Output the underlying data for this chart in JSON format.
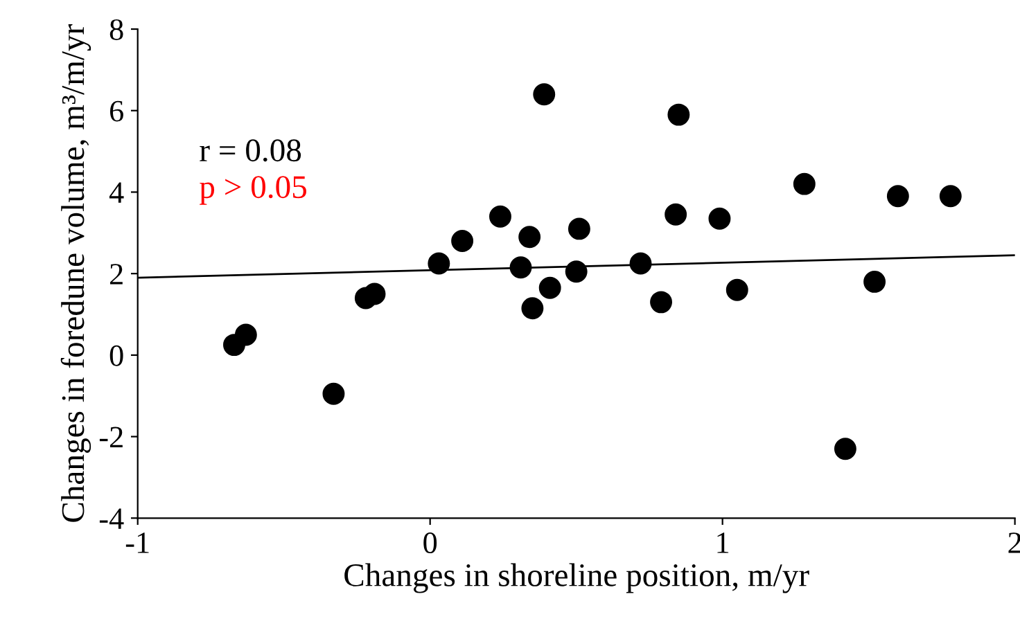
{
  "chart_data": {
    "type": "scatter",
    "xlabel": "Changes in shoreline position, m/yr",
    "ylabel": "Changes in foredune volume, m³/m/yr",
    "annotations": [
      "r = 0.08",
      "p > 0.05"
    ],
    "series": [
      {
        "color": "#000000",
        "marker": "circle",
        "x": [
          -0.67,
          -0.63,
          -0.33,
          -0.22,
          -0.19,
          0.03,
          0.11,
          0.24,
          0.31,
          0.34,
          0.35,
          0.39,
          0.41,
          0.5,
          0.51,
          0.72,
          0.79,
          0.84,
          0.85,
          0.99,
          1.05,
          1.28,
          1.42,
          1.52,
          1.6,
          1.78
        ],
        "values": [
          0.25,
          0.5,
          -0.95,
          1.4,
          1.5,
          2.25,
          2.8,
          3.4,
          2.15,
          2.9,
          1.15,
          6.4,
          1.65,
          2.05,
          3.1,
          2.25,
          1.3,
          3.45,
          5.9,
          3.35,
          1.6,
          4.2,
          -2.3,
          1.8,
          3.9,
          3.9
        ]
      },
      {
        "type": "line",
        "marker": "none",
        "color": "#000000",
        "x": [
          -1,
          2
        ],
        "values": [
          1.9,
          2.45
        ]
      }
    ],
    "xlim": [
      -1,
      2
    ],
    "xticks": [
      -1,
      0,
      1,
      2
    ],
    "ylim": [
      -4,
      8
    ],
    "yticks": [
      -4,
      -2,
      0,
      2,
      4,
      6,
      8
    ],
    "grid": false,
    "legend": false
  }
}
